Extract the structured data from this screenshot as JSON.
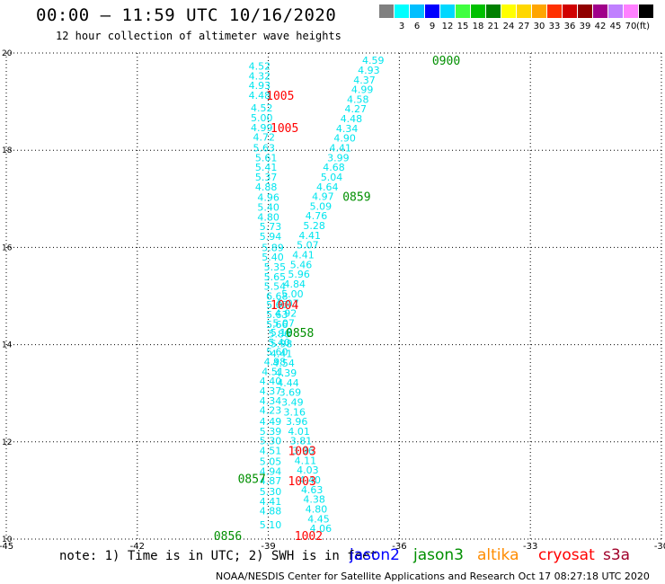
{
  "title": "00:00 – 11:59 UTC 10/16/2020",
  "subtitle": "12 hour collection of altimeter wave heights",
  "note": "note:  1) Time is in UTC; 2) SWH is in feet",
  "footer": "NOAA/NESDIS Center for Satellite Applications and Research   Oct 17 08:27:18 UTC 2020",
  "missions": [
    {
      "name": "jason2",
      "color": "#0000ff"
    },
    {
      "name": "jason3",
      "color": "#008f00"
    },
    {
      "name": "altika",
      "color": "#ff8c00"
    },
    {
      "name": "cryosat",
      "color": "#ff0000"
    },
    {
      "name": "s3a",
      "color": "#a0002a"
    }
  ],
  "legend": {
    "unit": "(ft)",
    "bins": [
      {
        "label": "",
        "color": "#808080"
      },
      {
        "label": "3",
        "color": "#00ffff"
      },
      {
        "label": "6",
        "color": "#00bfff"
      },
      {
        "label": "9",
        "color": "#0000ff"
      },
      {
        "label": "12",
        "color": "#00d8ff"
      },
      {
        "label": "15",
        "color": "#40ff40"
      },
      {
        "label": "18",
        "color": "#00c000"
      },
      {
        "label": "21",
        "color": "#008000"
      },
      {
        "label": "24",
        "color": "#ffff00"
      },
      {
        "label": "27",
        "color": "#ffd700"
      },
      {
        "label": "30",
        "color": "#ffa500"
      },
      {
        "label": "33",
        "color": "#ff3000"
      },
      {
        "label": "36",
        "color": "#d00000"
      },
      {
        "label": "39",
        "color": "#900000"
      },
      {
        "label": "42",
        "color": "#a0008a"
      },
      {
        "label": "45",
        "color": "#c080ff"
      },
      {
        "label": "70",
        "color": "#ff80ff"
      },
      {
        "label": "",
        "color": "#000000"
      }
    ]
  },
  "chart_data": {
    "type": "scatter",
    "xlim": [
      -45,
      -30
    ],
    "ylim": [
      10,
      20
    ],
    "x_ticks": [
      "-45",
      "-42",
      "-39",
      "-36",
      "-33",
      "-30"
    ],
    "y_ticks": [
      "10",
      "12",
      "14",
      "16",
      "18",
      "20"
    ],
    "grid": true,
    "value_color": "#00e5ee",
    "tracks": [
      {
        "points": [
          {
            "lon": -39.2,
            "lat": 19.73,
            "v": "4.52"
          },
          {
            "lon": -39.2,
            "lat": 19.53,
            "v": "4.32"
          },
          {
            "lon": -39.2,
            "lat": 19.33,
            "v": "4.93"
          },
          {
            "lon": -39.2,
            "lat": 19.13,
            "v": "4.48"
          },
          {
            "lon": -39.15,
            "lat": 18.87,
            "v": "4.52"
          },
          {
            "lon": -39.15,
            "lat": 18.67,
            "v": "5.00"
          },
          {
            "lon": -39.15,
            "lat": 18.47,
            "v": "4.99"
          },
          {
            "lon": -39.1,
            "lat": 18.27,
            "v": "4.72"
          },
          {
            "lon": -39.1,
            "lat": 18.05,
            "v": "5.63"
          },
          {
            "lon": -39.05,
            "lat": 17.85,
            "v": "5.61"
          },
          {
            "lon": -39.05,
            "lat": 17.65,
            "v": "5.41"
          },
          {
            "lon": -39.05,
            "lat": 17.45,
            "v": "5.37"
          },
          {
            "lon": -39.05,
            "lat": 17.25,
            "v": "4.88"
          },
          {
            "lon": -39.0,
            "lat": 17.03,
            "v": "4.96"
          },
          {
            "lon": -39.0,
            "lat": 16.83,
            "v": "5.40"
          },
          {
            "lon": -39.0,
            "lat": 16.63,
            "v": "4.80"
          },
          {
            "lon": -38.95,
            "lat": 16.43,
            "v": "5.73"
          },
          {
            "lon": -38.95,
            "lat": 16.23,
            "v": "5.94"
          },
          {
            "lon": -38.9,
            "lat": 16.0,
            "v": "5.89"
          },
          {
            "lon": -38.9,
            "lat": 15.8,
            "v": "5.40"
          },
          {
            "lon": -38.85,
            "lat": 15.6,
            "v": "5.35"
          },
          {
            "lon": -38.85,
            "lat": 15.4,
            "v": "5.65"
          },
          {
            "lon": -38.85,
            "lat": 15.2,
            "v": "5.54"
          },
          {
            "lon": -38.8,
            "lat": 15.0,
            "v": "6.68"
          },
          {
            "lon": -38.8,
            "lat": 14.82,
            "v": "5.65"
          },
          {
            "lon": -38.8,
            "lat": 14.62,
            "v": "5.63"
          },
          {
            "lon": -38.8,
            "lat": 14.42,
            "v": "5.66"
          },
          {
            "lon": -38.75,
            "lat": 14.22,
            "v": "5.86"
          },
          {
            "lon": -38.7,
            "lat": 14.02,
            "v": "5.98"
          },
          {
            "lon": -38.7,
            "lat": 13.82,
            "v": "4.41"
          },
          {
            "lon": -38.65,
            "lat": 13.62,
            "v": "4.54"
          },
          {
            "lon": -38.6,
            "lat": 13.42,
            "v": "4.39"
          },
          {
            "lon": -38.55,
            "lat": 13.22,
            "v": "4.44"
          },
          {
            "lon": -38.5,
            "lat": 13.02,
            "v": "3.69"
          },
          {
            "lon": -38.45,
            "lat": 12.82,
            "v": "3.49"
          },
          {
            "lon": -38.4,
            "lat": 12.62,
            "v": "3.16"
          },
          {
            "lon": -38.35,
            "lat": 12.42,
            "v": "3.96"
          },
          {
            "lon": -38.3,
            "lat": 12.22,
            "v": "4.01"
          },
          {
            "lon": -38.25,
            "lat": 12.02,
            "v": "3.81"
          },
          {
            "lon": -38.2,
            "lat": 11.82,
            "v": "3.96"
          },
          {
            "lon": -38.15,
            "lat": 11.62,
            "v": "4.11"
          },
          {
            "lon": -38.1,
            "lat": 11.42,
            "v": "4.03"
          },
          {
            "lon": -38.05,
            "lat": 11.22,
            "v": "4.40"
          },
          {
            "lon": -38.0,
            "lat": 11.02,
            "v": "4.63"
          },
          {
            "lon": -37.95,
            "lat": 10.82,
            "v": "4.38"
          },
          {
            "lon": -37.9,
            "lat": 10.62,
            "v": "4.80"
          },
          {
            "lon": -37.85,
            "lat": 10.42,
            "v": "4.45"
          },
          {
            "lon": -37.8,
            "lat": 10.22,
            "v": "4.06"
          }
        ]
      },
      {
        "points": [
          {
            "lon": -36.6,
            "lat": 19.85,
            "v": "4.59"
          },
          {
            "lon": -36.7,
            "lat": 19.65,
            "v": "4.93"
          },
          {
            "lon": -36.8,
            "lat": 19.45,
            "v": "4.37"
          },
          {
            "lon": -36.85,
            "lat": 19.25,
            "v": "4.99"
          },
          {
            "lon": -36.95,
            "lat": 19.05,
            "v": "4.58"
          },
          {
            "lon": -37.0,
            "lat": 18.85,
            "v": "4.27"
          },
          {
            "lon": -37.1,
            "lat": 18.65,
            "v": "4.48"
          },
          {
            "lon": -37.2,
            "lat": 18.45,
            "v": "4.34"
          },
          {
            "lon": -37.25,
            "lat": 18.25,
            "v": "4.90"
          },
          {
            "lon": -37.35,
            "lat": 18.05,
            "v": "4.41"
          },
          {
            "lon": -37.4,
            "lat": 17.85,
            "v": "3.99"
          },
          {
            "lon": -37.5,
            "lat": 17.65,
            "v": "4.68"
          },
          {
            "lon": -37.55,
            "lat": 17.45,
            "v": "5.04"
          },
          {
            "lon": -37.65,
            "lat": 17.25,
            "v": "4.64"
          },
          {
            "lon": -37.75,
            "lat": 17.05,
            "v": "4.97"
          },
          {
            "lon": -37.8,
            "lat": 16.85,
            "v": "5.09"
          },
          {
            "lon": -37.9,
            "lat": 16.65,
            "v": "4.76"
          },
          {
            "lon": -37.95,
            "lat": 16.45,
            "v": "5.28"
          },
          {
            "lon": -38.05,
            "lat": 16.25,
            "v": "4.41"
          },
          {
            "lon": -38.1,
            "lat": 16.05,
            "v": "5.07"
          },
          {
            "lon": -38.2,
            "lat": 15.85,
            "v": "4.41"
          },
          {
            "lon": -38.25,
            "lat": 15.65,
            "v": "5.46"
          },
          {
            "lon": -38.3,
            "lat": 15.45,
            "v": "5.96"
          },
          {
            "lon": -38.4,
            "lat": 15.25,
            "v": "4.84"
          },
          {
            "lon": -38.45,
            "lat": 15.05,
            "v": "5.00"
          },
          {
            "lon": -38.55,
            "lat": 14.85,
            "v": "5.07"
          },
          {
            "lon": -38.6,
            "lat": 14.65,
            "v": "4.92"
          },
          {
            "lon": -38.65,
            "lat": 14.45,
            "v": "5.07"
          },
          {
            "lon": -38.7,
            "lat": 14.25,
            "v": "5.18"
          },
          {
            "lon": -38.75,
            "lat": 14.05,
            "v": "5.40"
          },
          {
            "lon": -38.8,
            "lat": 13.85,
            "v": "5.60"
          },
          {
            "lon": -38.85,
            "lat": 13.65,
            "v": "4.98"
          },
          {
            "lon": -38.9,
            "lat": 13.45,
            "v": "4.51"
          },
          {
            "lon": -38.95,
            "lat": 13.25,
            "v": "4.40"
          },
          {
            "lon": -38.95,
            "lat": 13.05,
            "v": "4.37"
          },
          {
            "lon": -38.95,
            "lat": 12.85,
            "v": "4.34"
          },
          {
            "lon": -38.95,
            "lat": 12.65,
            "v": "4.23"
          },
          {
            "lon": -38.95,
            "lat": 12.42,
            "v": "4.49"
          },
          {
            "lon": -38.95,
            "lat": 12.22,
            "v": "5.39"
          },
          {
            "lon": -38.95,
            "lat": 12.02,
            "v": "5.30"
          },
          {
            "lon": -38.95,
            "lat": 11.82,
            "v": "4.51"
          },
          {
            "lon": -38.95,
            "lat": 11.6,
            "v": "5.05"
          },
          {
            "lon": -38.95,
            "lat": 11.4,
            "v": "4.94"
          },
          {
            "lon": -38.95,
            "lat": 11.2,
            "v": "4.87"
          },
          {
            "lon": -38.95,
            "lat": 10.98,
            "v": "5.30"
          },
          {
            "lon": -38.95,
            "lat": 10.78,
            "v": "4.41"
          },
          {
            "lon": -38.95,
            "lat": 10.58,
            "v": "4.88"
          },
          {
            "lon": -38.95,
            "lat": 10.3,
            "v": "5.10"
          }
        ]
      }
    ],
    "time_labels": [
      {
        "text": "0900",
        "lon": -35.25,
        "lat": 19.85,
        "mission": "jason3"
      },
      {
        "text": "0859",
        "lon": -37.3,
        "lat": 17.05,
        "mission": "jason3"
      },
      {
        "text": "0858",
        "lon": -38.6,
        "lat": 14.25,
        "mission": "jason3"
      },
      {
        "text": "0857",
        "lon": -39.7,
        "lat": 11.25,
        "mission": "jason3"
      },
      {
        "text": "0856",
        "lon": -40.25,
        "lat": 10.07,
        "mission": "jason3"
      },
      {
        "text": "1005",
        "lon": -39.05,
        "lat": 19.13,
        "mission": "cryosat"
      },
      {
        "text": "1005",
        "lon": -38.95,
        "lat": 18.47,
        "mission": "cryosat"
      },
      {
        "text": "1004",
        "lon": -38.95,
        "lat": 14.82,
        "mission": "cryosat"
      },
      {
        "text": "1003",
        "lon": -38.55,
        "lat": 11.82,
        "mission": "cryosat"
      },
      {
        "text": "1003",
        "lon": -38.55,
        "lat": 11.2,
        "mission": "cryosat"
      },
      {
        "text": "1002",
        "lon": -38.4,
        "lat": 10.07,
        "mission": "cryosat"
      }
    ]
  }
}
